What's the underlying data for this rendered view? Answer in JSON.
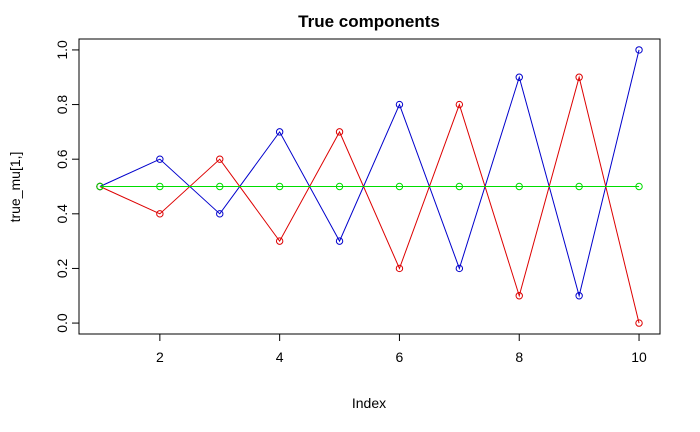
{
  "chart_data": {
    "type": "line",
    "title": "True components",
    "xlabel": "Index",
    "ylabel": "true_mu[1,]",
    "xlim": [
      0.65,
      10.35
    ],
    "ylim": [
      -0.04,
      1.04
    ],
    "x_ticks": [
      2,
      4,
      6,
      8,
      10
    ],
    "y_ticks": [
      0.0,
      0.2,
      0.4,
      0.6,
      0.8,
      1.0
    ],
    "x_tick_labels": [
      "2",
      "4",
      "6",
      "8",
      "10"
    ],
    "y_tick_labels": [
      "0.0",
      "0.2",
      "0.4",
      "0.6",
      "0.8",
      "1.0"
    ],
    "grid": false,
    "marker": "open-circle",
    "x": [
      1,
      2,
      3,
      4,
      5,
      6,
      7,
      8,
      9,
      10
    ],
    "series": [
      {
        "color": "#0000cc",
        "values": [
          0.5,
          0.6,
          0.4,
          0.7,
          0.3,
          0.8,
          0.2,
          0.9,
          0.1,
          1.0
        ]
      },
      {
        "color": "#dd0000",
        "values": [
          0.5,
          0.4,
          0.6,
          0.3,
          0.7,
          0.2,
          0.8,
          0.1,
          0.9,
          0.0
        ]
      },
      {
        "color": "#00dd00",
        "values": [
          0.5,
          0.5,
          0.5,
          0.5,
          0.5,
          0.5,
          0.5,
          0.5,
          0.5,
          0.5
        ]
      }
    ]
  }
}
